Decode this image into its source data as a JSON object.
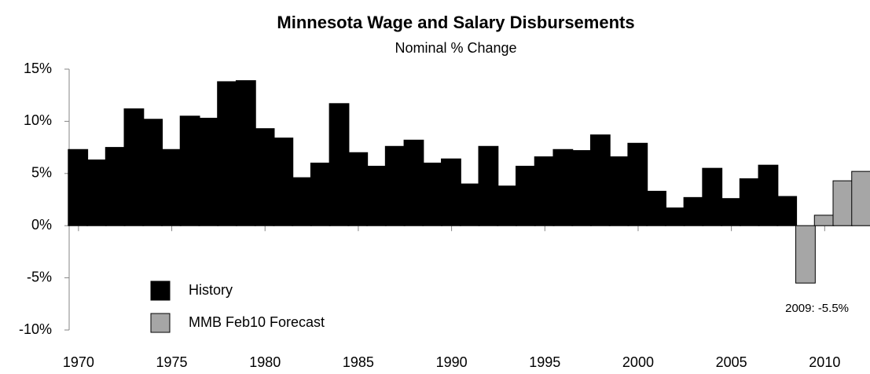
{
  "chart_data": {
    "type": "bar",
    "title": "Minnesota Wage and Salary Disbursements",
    "subtitle": "Nominal % Change",
    "x": [
      1970,
      1971,
      1972,
      1973,
      1974,
      1975,
      1976,
      1977,
      1978,
      1979,
      1980,
      1981,
      1982,
      1983,
      1984,
      1985,
      1986,
      1987,
      1988,
      1989,
      1990,
      1991,
      1992,
      1993,
      1994,
      1995,
      1996,
      1997,
      1998,
      1999,
      2000,
      2001,
      2002,
      2003,
      2004,
      2005,
      2006,
      2007,
      2008,
      2009,
      2010,
      2011,
      2012
    ],
    "series": [
      {
        "name": "History",
        "color": "#000000",
        "values": [
          7.3,
          6.3,
          7.5,
          11.2,
          10.2,
          7.3,
          10.5,
          10.3,
          13.8,
          13.9,
          9.3,
          8.4,
          4.6,
          6.0,
          11.7,
          7.0,
          5.7,
          7.6,
          8.2,
          6.0,
          6.4,
          4.0,
          7.6,
          3.8,
          5.7,
          6.6,
          7.3,
          7.2,
          8.7,
          6.6,
          7.9,
          3.3,
          1.7,
          2.7,
          5.5,
          2.6,
          4.5,
          5.8,
          2.8,
          null,
          null,
          null,
          null
        ]
      },
      {
        "name": "MMB Feb10 Forecast",
        "color": "#a6a6a6",
        "values": [
          null,
          null,
          null,
          null,
          null,
          null,
          null,
          null,
          null,
          null,
          null,
          null,
          null,
          null,
          null,
          null,
          null,
          null,
          null,
          null,
          null,
          null,
          null,
          null,
          null,
          null,
          null,
          null,
          null,
          null,
          null,
          null,
          null,
          null,
          null,
          null,
          null,
          null,
          null,
          -5.5,
          1.0,
          4.3,
          5.2
        ]
      }
    ],
    "annotation": "2009: -5.5%",
    "xlim": [
      1969.5,
      2012.43
    ],
    "xticks": [
      1970,
      1975,
      1980,
      1985,
      1990,
      1995,
      2000,
      2005,
      2010
    ],
    "ylim": [
      -10,
      15
    ],
    "yticks": [
      {
        "value": -10,
        "label": "-10%"
      },
      {
        "value": -5,
        "label": "-5%"
      },
      {
        "value": 0,
        "label": "0%"
      },
      {
        "value": 5,
        "label": "5%"
      },
      {
        "value": 10,
        "label": "10%"
      },
      {
        "value": 15,
        "label": "15%"
      }
    ]
  }
}
